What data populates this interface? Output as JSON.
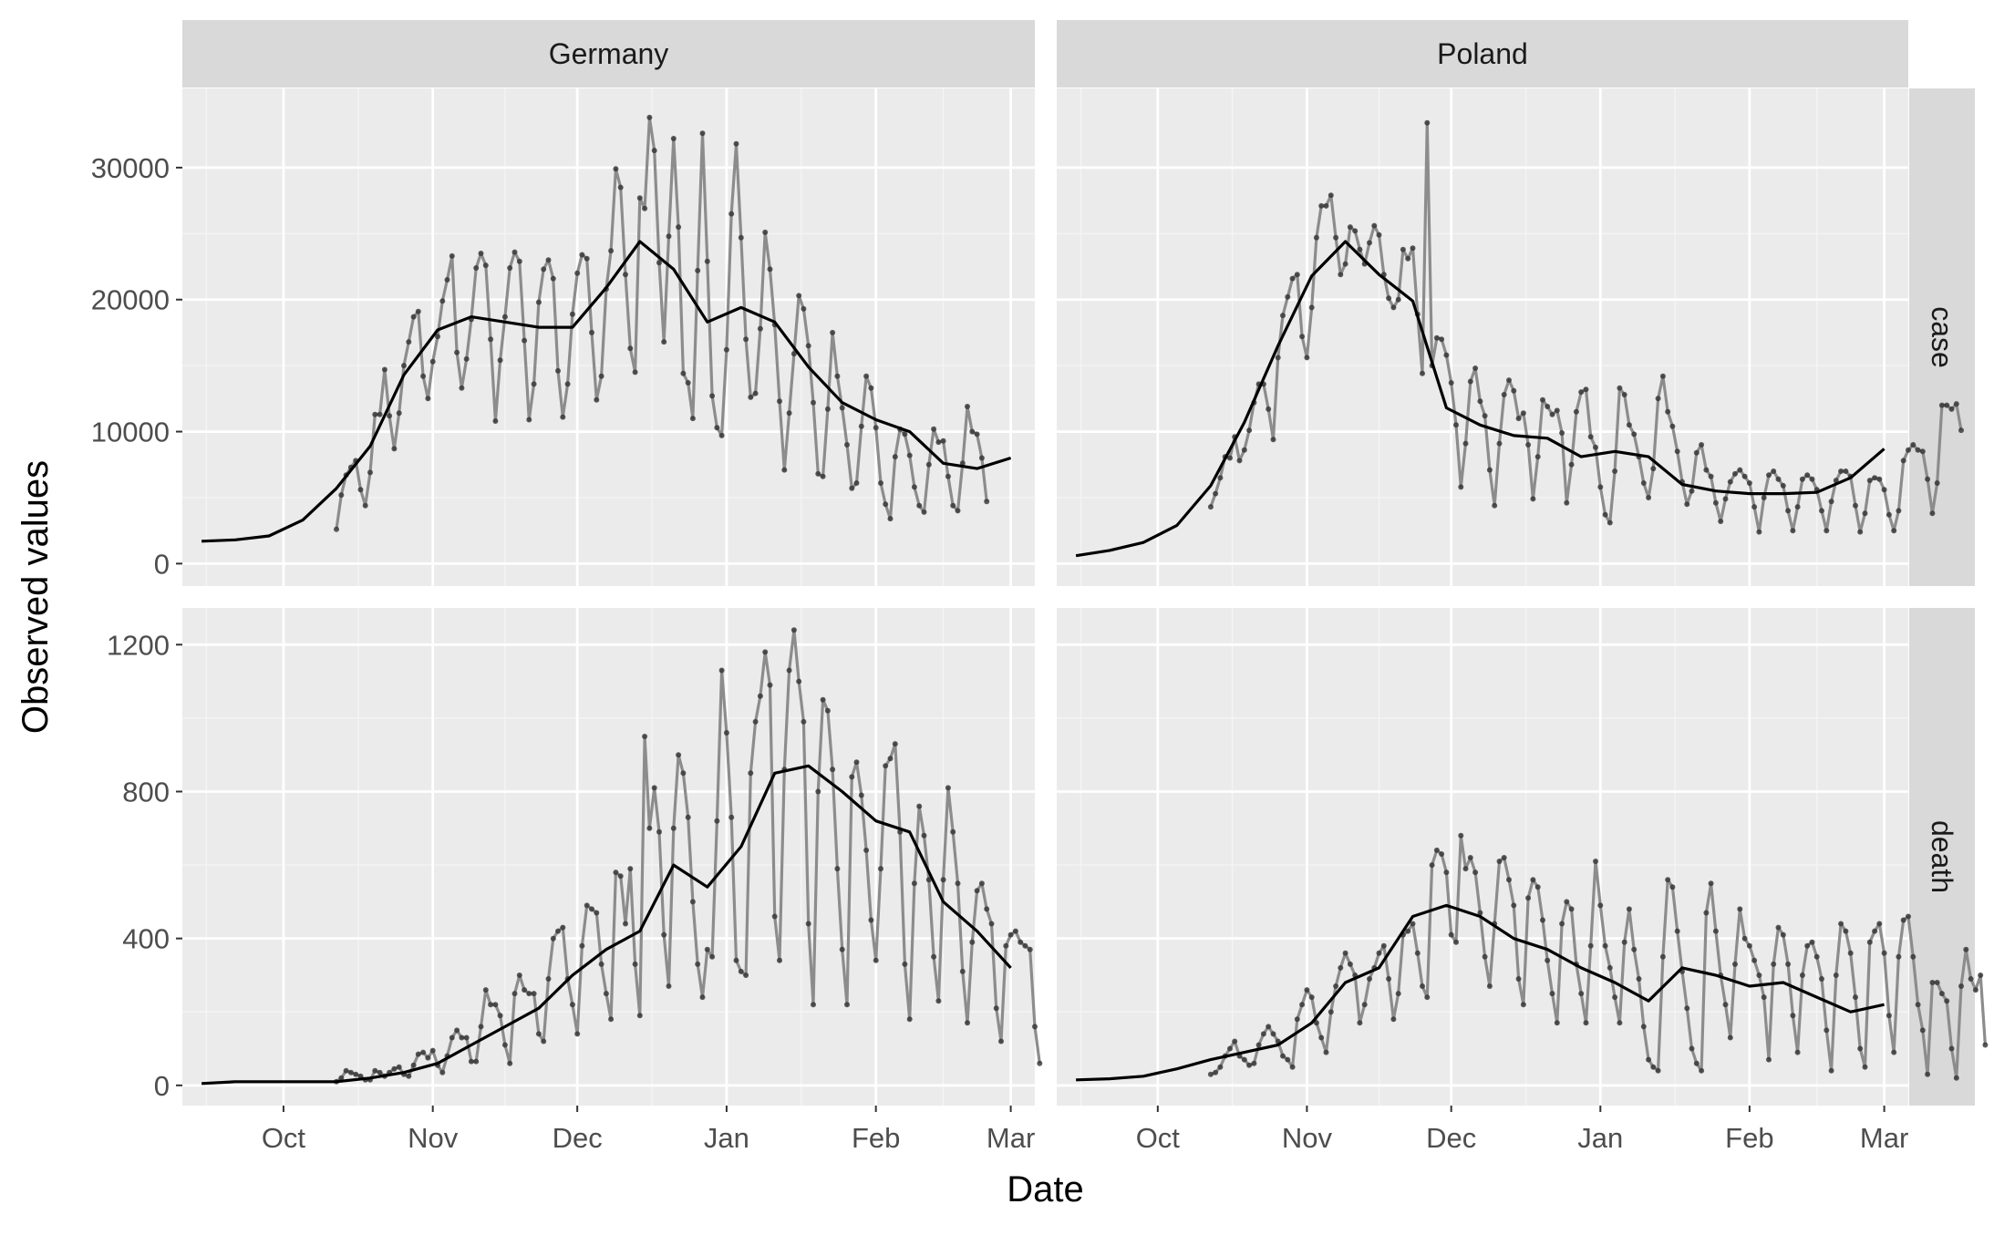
{
  "chart_data": {
    "type": "line",
    "xlabel": "Date",
    "ylabel": "Observed values",
    "facet_columns": [
      "Germany",
      "Poland"
    ],
    "facet_rows": [
      "case",
      "death"
    ],
    "x_tick_labels": [
      "Oct",
      "Nov",
      "Dec",
      "Jan",
      "Feb",
      "Mar"
    ],
    "xlim": [
      "2020-09-10",
      "2021-03-06"
    ],
    "grid": true,
    "colors": {
      "panel_bg": "#ebebeb",
      "strip_bg": "#d9d9d9",
      "grid_major": "#ffffff",
      "grid_minor": "#f4f4f4",
      "observed_line": "#8c8c8c",
      "observed_point": "#333333",
      "weekly_line": "#000000"
    },
    "panels": [
      {
        "column": "Germany",
        "row": "case",
        "ylim": [
          -1700,
          36000
        ],
        "y_ticks": [
          0,
          10000,
          20000,
          30000
        ],
        "y_tick_labels": [
          "0",
          "10000",
          "20000",
          "30000"
        ],
        "daily_start": "2020-10-12",
        "daily": [
          2600,
          5200,
          6700,
          7300,
          7800,
          5600,
          4400,
          6900,
          11300,
          11300,
          14700,
          11200,
          8700,
          11400,
          15000,
          16800,
          18700,
          19100,
          14200,
          12500,
          15300,
          17200,
          19900,
          21500,
          23300,
          16000,
          13300,
          15500,
          18500,
          22400,
          23500,
          22600,
          17000,
          10800,
          15400,
          18700,
          22400,
          23600,
          22900,
          16900,
          10900,
          13600,
          19800,
          22300,
          23000,
          21600,
          14600,
          11100,
          13600,
          18900,
          22000,
          23400,
          23100,
          17500,
          12400,
          14200,
          20800,
          23700,
          29900,
          28500,
          21900,
          16300,
          14500,
          27700,
          26900,
          33800,
          31300,
          22800,
          16800,
          24800,
          32200,
          25500,
          14400,
          13700,
          11000,
          22200,
          32600,
          22900,
          12700,
          10300,
          9700,
          16200,
          26500,
          31800,
          24700,
          17000,
          12600,
          12900,
          17800,
          25100,
          22300,
          18100,
          12300,
          7100,
          11400,
          15900,
          20300,
          19300,
          16500,
          12200,
          6800,
          6600,
          11700,
          17500,
          14200,
          11800,
          9000,
          5700,
          6100,
          10400,
          14200,
          13300,
          10300,
          6100,
          4500,
          3400,
          8100,
          10200,
          9800,
          8200,
          5800,
          4400,
          3900,
          7500,
          10200,
          9200,
          9300,
          6600,
          4400,
          4000,
          7600,
          11900,
          10000,
          9800,
          8000,
          4700
        ],
        "weekly_start": "2020-09-14",
        "weekly": [
          1700,
          1800,
          2100,
          3300,
          5700,
          8900,
          14300,
          17700,
          18700,
          18300,
          17900,
          17900,
          20900,
          24400,
          22300,
          18300,
          19400,
          18300,
          14900,
          12200,
          10900,
          10000,
          7600,
          7200,
          8000
        ]
      },
      {
        "column": "Poland",
        "row": "case",
        "ylim": [
          -1700,
          36000
        ],
        "y_ticks": [
          0,
          10000,
          20000,
          30000
        ],
        "y_tick_labels": [
          "0",
          "10000",
          "20000",
          "30000"
        ],
        "daily_start": "2020-10-12",
        "daily": [
          4300,
          5300,
          6500,
          8100,
          8000,
          9600,
          7800,
          8600,
          10100,
          12200,
          13600,
          13600,
          11700,
          9400,
          15600,
          18800,
          20200,
          21600,
          21900,
          17200,
          15600,
          19400,
          24700,
          27100,
          27100,
          27900,
          24700,
          21900,
          22700,
          25500,
          25200,
          23800,
          22700,
          24300,
          25600,
          24900,
          21900,
          20100,
          19400,
          20000,
          23800,
          23100,
          23900,
          18900,
          14400,
          33400,
          15000,
          17100,
          17000,
          15800,
          13700,
          10500,
          5800,
          9100,
          13800,
          14800,
          12300,
          11200,
          7100,
          4400,
          9100,
          12800,
          13900,
          13100,
          11000,
          11400,
          9000,
          4900,
          8100,
          12400,
          11900,
          11300,
          11600,
          9900,
          4600,
          7500,
          11500,
          13000,
          13200,
          9600,
          8800,
          5800,
          3700,
          3100,
          7000,
          13300,
          12800,
          10500,
          9800,
          8100,
          6100,
          5000,
          7200,
          12500,
          14200,
          11500,
          10400,
          8500,
          6200,
          4500,
          5500,
          8400,
          9000,
          7100,
          6600,
          4600,
          3200,
          4900,
          6200,
          6800,
          7100,
          6600,
          6100,
          4300,
          2400,
          5000,
          6700,
          7000,
          6400,
          5900,
          4000,
          2500,
          4300,
          6400,
          6700,
          6400,
          5600,
          4000,
          2500,
          4700,
          6300,
          7000,
          7000,
          6600,
          4400,
          2400,
          3800,
          6300,
          6500,
          6400,
          5600,
          3700,
          2500,
          4000,
          7800,
          8600,
          9000,
          8600,
          8500,
          6400,
          3800,
          6100,
          12000,
          12000,
          11700,
          12100,
          10100
        ],
        "weekly_start": "2020-09-14",
        "weekly": [
          600,
          1000,
          1600,
          2900,
          5900,
          10700,
          16500,
          21800,
          24400,
          21900,
          19900,
          11800,
          10500,
          9700,
          9500,
          8100,
          8500,
          8100,
          6000,
          5500,
          5300,
          5300,
          5400,
          6500,
          8700
        ]
      },
      {
        "column": "Germany",
        "row": "death",
        "ylim": [
          -55,
          1300
        ],
        "y_ticks": [
          0,
          400,
          800,
          1200
        ],
        "y_tick_labels": [
          "0",
          "400",
          "800",
          "1200"
        ],
        "daily_start": "2020-10-12",
        "daily": [
          10,
          20,
          40,
          35,
          30,
          25,
          15,
          15,
          40,
          35,
          25,
          35,
          45,
          50,
          30,
          25,
          55,
          85,
          90,
          75,
          95,
          55,
          35,
          80,
          130,
          150,
          130,
          130,
          65,
          65,
          160,
          260,
          220,
          220,
          190,
          110,
          60,
          250,
          300,
          260,
          250,
          250,
          140,
          120,
          290,
          400,
          420,
          430,
          290,
          220,
          140,
          380,
          490,
          480,
          470,
          330,
          250,
          180,
          580,
          570,
          440,
          590,
          330,
          190,
          950,
          700,
          810,
          690,
          410,
          270,
          700,
          900,
          850,
          730,
          500,
          330,
          240,
          370,
          350,
          720,
          1130,
          960,
          730,
          340,
          310,
          300,
          850,
          990,
          1060,
          1180,
          1090,
          460,
          340,
          860,
          1130,
          1240,
          1100,
          990,
          440,
          220,
          800,
          1050,
          1020,
          860,
          590,
          370,
          220,
          840,
          880,
          790,
          640,
          450,
          340,
          590,
          870,
          890,
          930,
          690,
          330,
          180,
          550,
          760,
          680,
          560,
          350,
          230,
          560,
          810,
          690,
          550,
          310,
          170,
          390,
          530,
          550,
          480,
          440,
          210,
          120,
          380,
          410,
          420,
          390,
          380,
          370,
          160,
          60
        ],
        "weekly_start": "2020-09-14",
        "weekly": [
          5,
          10,
          10,
          10,
          10,
          20,
          35,
          60,
          110,
          160,
          210,
          300,
          370,
          420,
          600,
          540,
          650,
          850,
          870,
          800,
          720,
          690,
          500,
          420,
          320
        ]
      },
      {
        "column": "Poland",
        "row": "death",
        "ylim": [
          -55,
          1300
        ],
        "y_ticks": [
          0,
          400,
          800,
          1200
        ],
        "y_tick_labels": [
          "0",
          "400",
          "800",
          "1200"
        ],
        "daily_start": "2020-10-12",
        "daily": [
          30,
          35,
          50,
          80,
          100,
          120,
          80,
          70,
          55,
          60,
          110,
          140,
          160,
          140,
          120,
          80,
          70,
          50,
          180,
          220,
          260,
          240,
          170,
          130,
          90,
          200,
          270,
          320,
          360,
          330,
          300,
          170,
          220,
          290,
          320,
          360,
          380,
          290,
          180,
          250,
          410,
          420,
          440,
          360,
          270,
          240,
          600,
          640,
          630,
          580,
          410,
          390,
          680,
          590,
          620,
          580,
          470,
          350,
          270,
          440,
          610,
          620,
          560,
          490,
          290,
          220,
          510,
          560,
          540,
          450,
          340,
          250,
          170,
          440,
          500,
          480,
          330,
          250,
          170,
          380,
          610,
          490,
          380,
          320,
          240,
          170,
          390,
          480,
          370,
          290,
          160,
          70,
          50,
          40,
          350,
          560,
          540,
          420,
          310,
          210,
          100,
          60,
          40,
          470,
          550,
          420,
          300,
          220,
          130,
          330,
          480,
          400,
          380,
          340,
          300,
          240,
          70,
          330,
          430,
          410,
          330,
          190,
          90,
          300,
          380,
          390,
          350,
          290,
          150,
          40,
          300,
          440,
          420,
          360,
          240,
          100,
          50,
          390,
          420,
          440,
          360,
          190,
          90,
          350,
          450,
          460,
          350,
          220,
          150,
          30,
          280,
          280,
          250,
          230,
          100,
          20,
          270,
          370,
          290,
          260,
          300,
          110
        ],
        "weekly_start": "2020-09-14",
        "weekly": [
          15,
          18,
          25,
          45,
          70,
          90,
          110,
          170,
          280,
          320,
          460,
          490,
          460,
          400,
          370,
          320,
          280,
          230,
          320,
          300,
          270,
          280,
          240,
          200,
          220
        ]
      }
    ]
  }
}
